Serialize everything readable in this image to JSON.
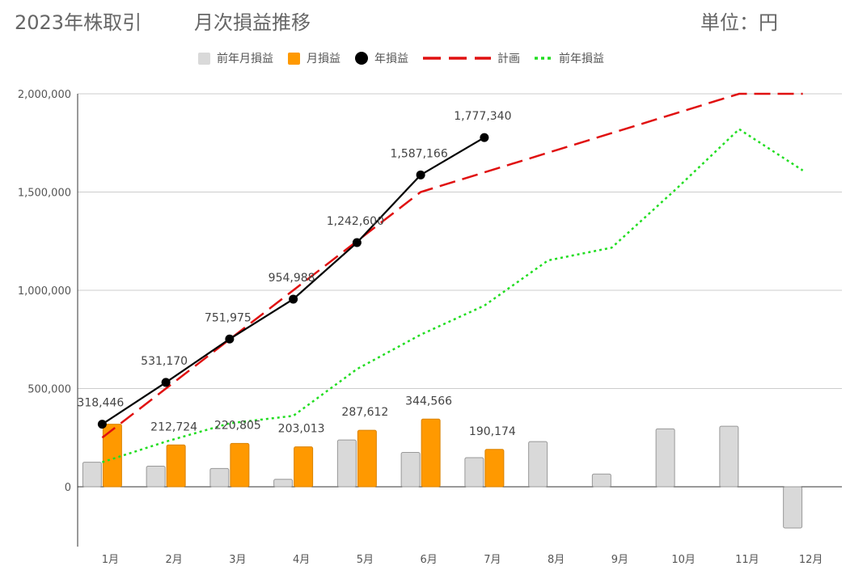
{
  "header": {
    "title": "2023年株取引",
    "subtitle": "月次損益推移",
    "unit": "単位：円"
  },
  "colors": {
    "prev_month_bar": "#d9d9d9",
    "month_bar": "#ff9900",
    "year_line": "#000000",
    "plan_line": "#e01010",
    "prev_year_line": "#22dd22"
  },
  "chart_data": {
    "type": "bar",
    "title": "月次損益推移",
    "categories": [
      "1月",
      "2月",
      "3月",
      "4月",
      "5月",
      "6月",
      "7月",
      "8月",
      "9月",
      "10月",
      "11月",
      "12月"
    ],
    "ylim": [
      -300000,
      2000000
    ],
    "yticks": [
      0,
      500000,
      1000000,
      1500000,
      2000000
    ],
    "ytick_labels": [
      "0",
      "500,000",
      "1,000,000",
      "1,500,000",
      "2,000,000"
    ],
    "legend_position": "top",
    "grid": true,
    "series": [
      {
        "name": "前年月損益",
        "type": "bar",
        "values": [
          125000,
          105000,
          93000,
          38000,
          238000,
          175000,
          148000,
          230000,
          65000,
          295000,
          308000,
          -210000
        ]
      },
      {
        "name": "月損益",
        "type": "bar",
        "values": [
          318446,
          212724,
          220805,
          203013,
          287612,
          344566,
          190174,
          null,
          null,
          null,
          null,
          null
        ],
        "labels": [
          "",
          "212,724",
          "220,805",
          "203,013",
          "287,612",
          "344,566",
          "190,174",
          "",
          "",
          "",
          "",
          ""
        ]
      },
      {
        "name": "年損益",
        "type": "line-markers",
        "values": [
          318446,
          531170,
          751975,
          954988,
          1242600,
          1587166,
          1777340,
          null,
          null,
          null,
          null,
          null
        ],
        "labels": [
          "318,446",
          "531,170",
          "751,975",
          "954,988",
          "1,242,600",
          "1,587,166",
          "1,777,340",
          "",
          "",
          "",
          "",
          ""
        ]
      },
      {
        "name": "計画",
        "type": "line-dashed",
        "values": [
          250000,
          500000,
          750000,
          1000000,
          1250000,
          1500000,
          1600000,
          1700000,
          1800000,
          1900000,
          2000000,
          2000000
        ]
      },
      {
        "name": "前年損益",
        "type": "line-dotted",
        "values": [
          125000,
          230000,
          323000,
          361000,
          599000,
          774000,
          922000,
          1152000,
          1217000,
          1512000,
          1820000,
          1610000
        ]
      }
    ]
  }
}
